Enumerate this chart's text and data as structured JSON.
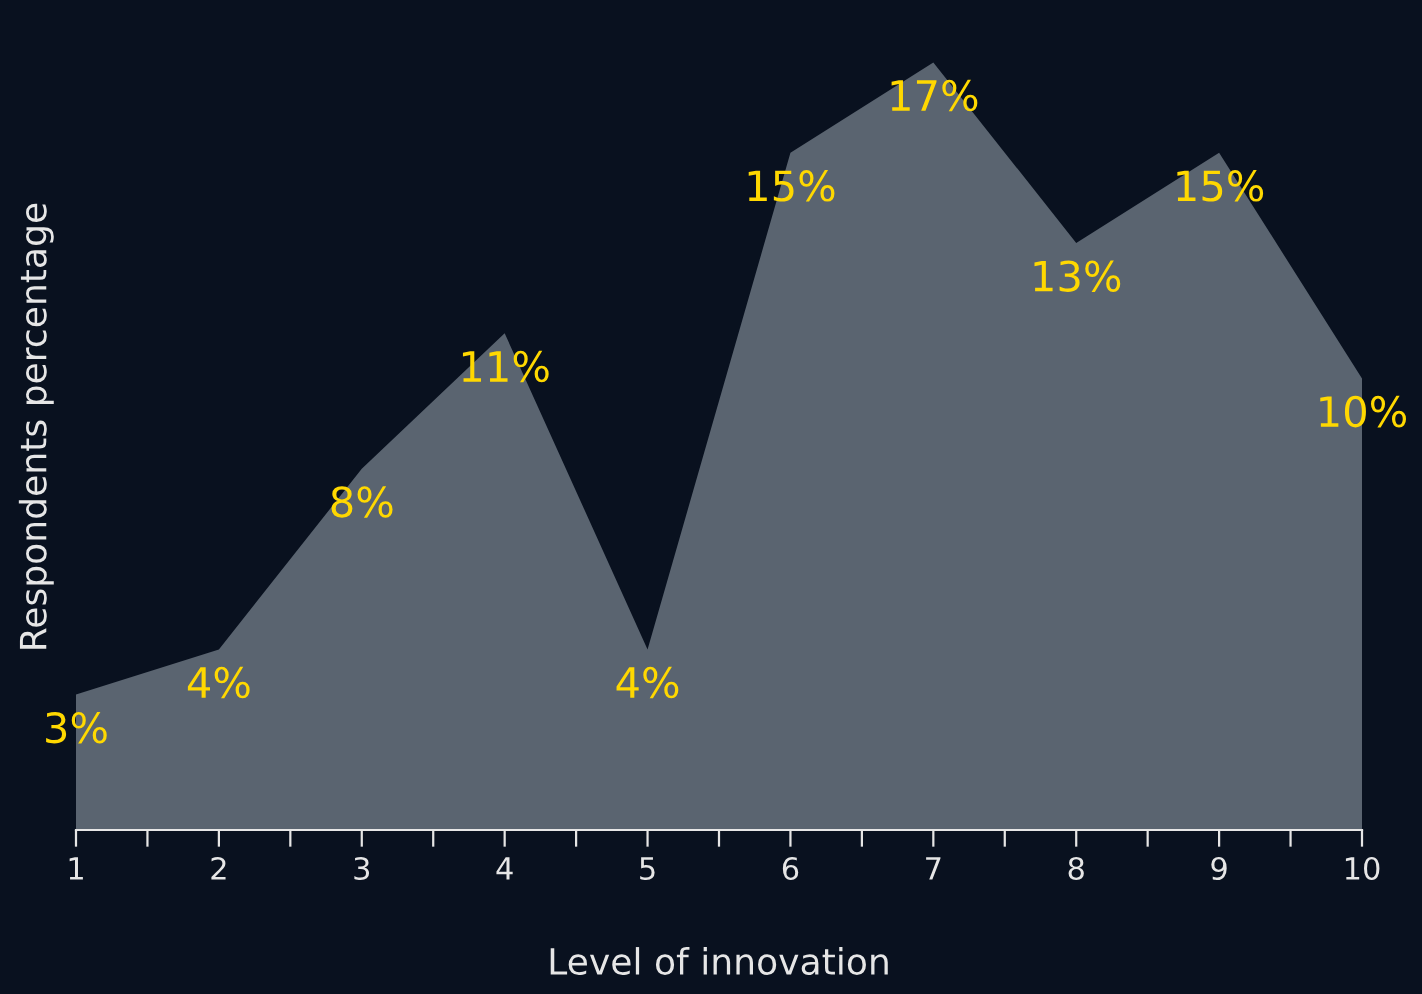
{
  "chart_data": {
    "type": "area",
    "xlabel": "Level of innovation",
    "ylabel": "Respondents percentage",
    "x": [
      1,
      2,
      3,
      4,
      5,
      6,
      7,
      8,
      9,
      10
    ],
    "values": [
      3,
      4,
      8,
      11,
      4,
      15,
      17,
      13,
      15,
      10
    ],
    "value_labels": [
      "3%",
      "4%",
      "8%",
      "11%",
      "4%",
      "15%",
      "17%",
      "13%",
      "15%",
      "10%"
    ],
    "color": "#5a6470",
    "xlim": [
      1,
      10
    ],
    "xticks": [
      1,
      {
        "value": 1.5,
        "label": null
      },
      2,
      {
        "value": 2.5,
        "label": null
      },
      3,
      {
        "value": 3.5,
        "label": null
      },
      4,
      {
        "value": 4.5,
        "label": null
      },
      5,
      {
        "value": 5.5,
        "label": null
      },
      6,
      {
        "value": 6.5,
        "label": null
      },
      7,
      {
        "value": 7.5,
        "label": null
      },
      8,
      {
        "value": 8.5,
        "label": null
      },
      9,
      {
        "value": 9.5,
        "label": null
      },
      10
    ],
    "tick_labels": "x"
  }
}
